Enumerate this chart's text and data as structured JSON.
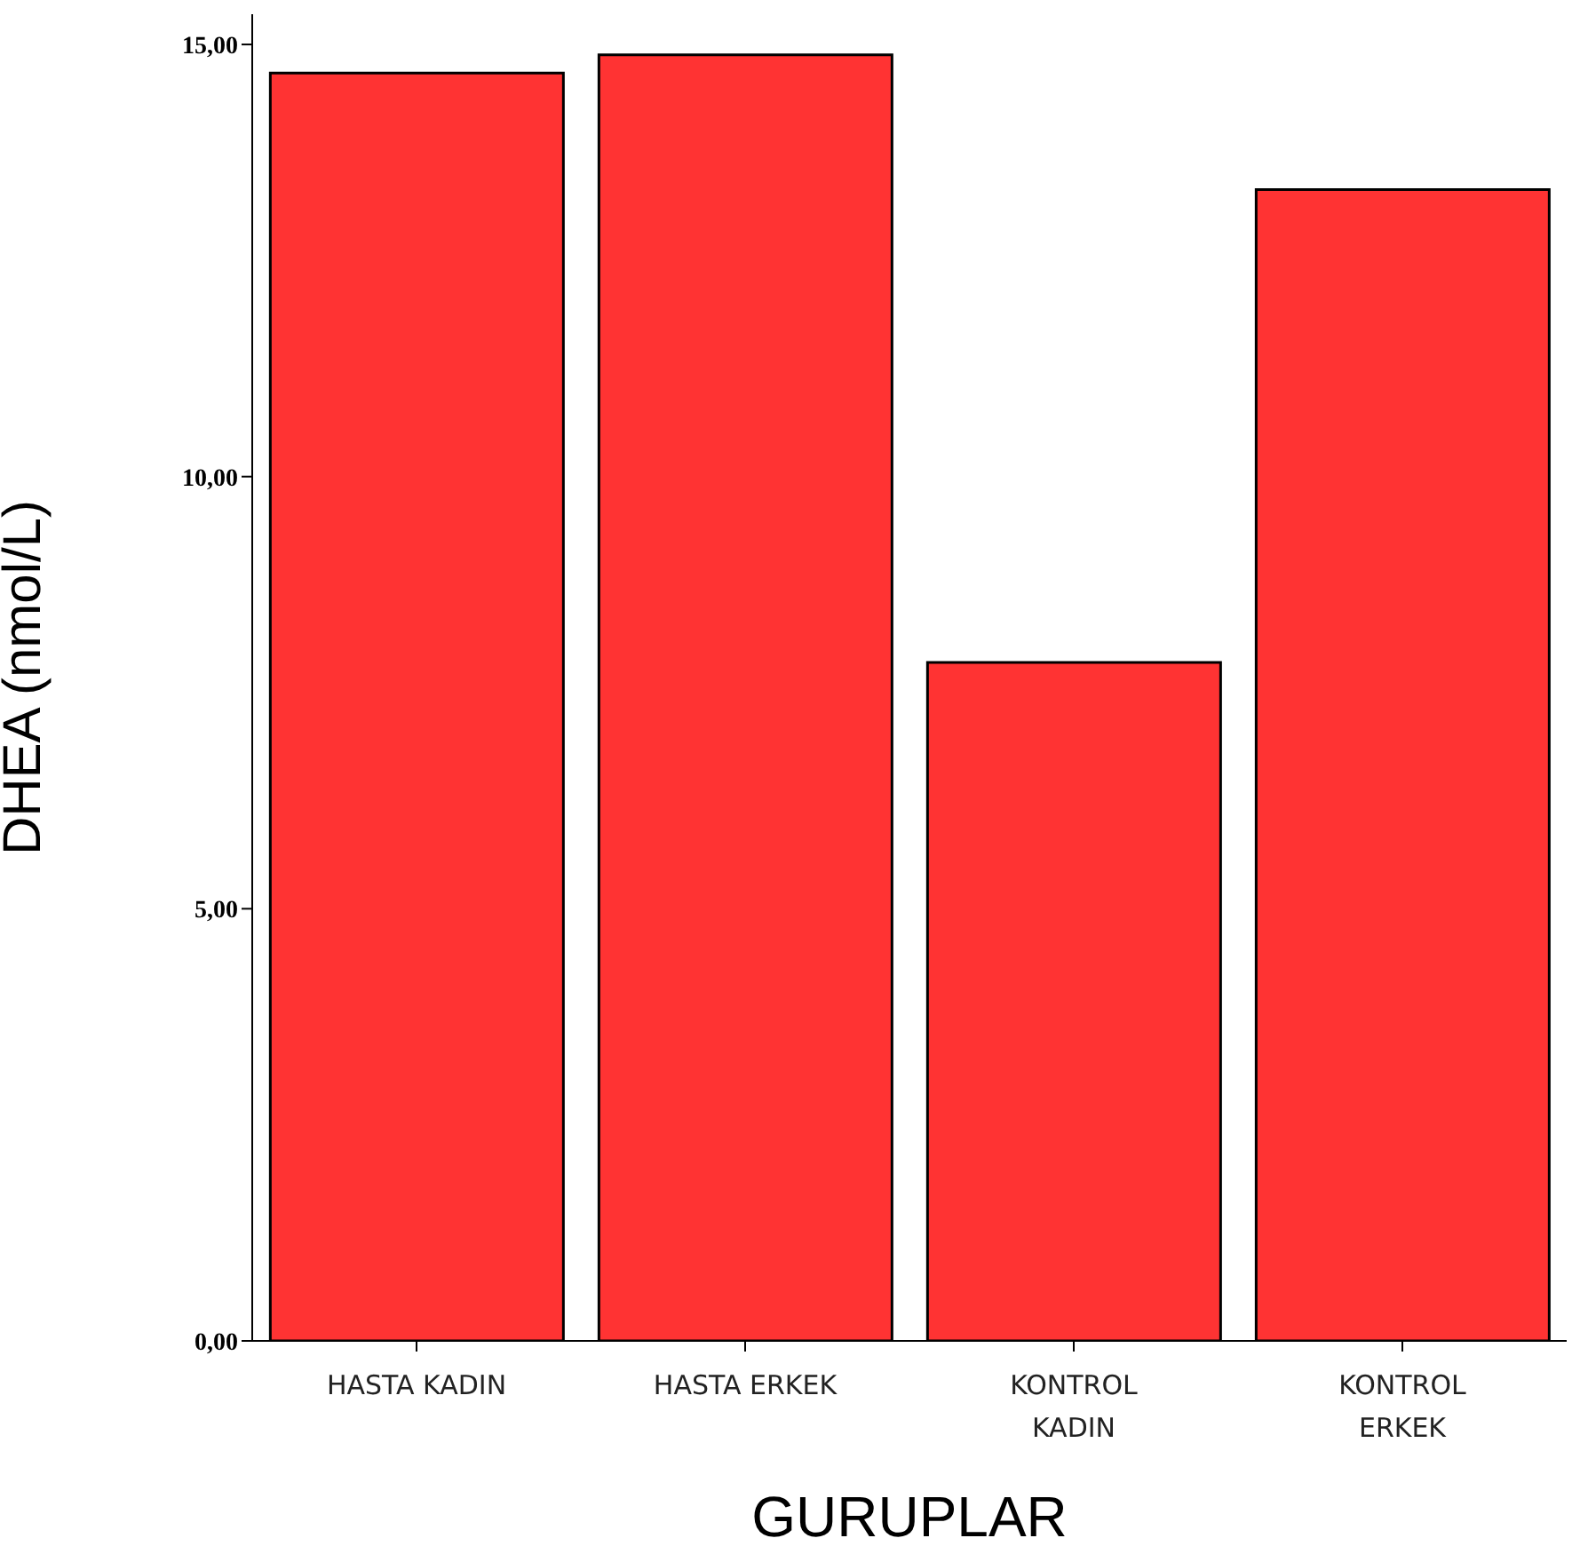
{
  "chart_data": {
    "type": "bar",
    "xlabel": "GURUPLAR",
    "ylabel": "DHEA   (nmol/L)",
    "categories": [
      "HASTA KADIN",
      "HASTA ERKEK",
      "KONTROL KADIN",
      "KONTROL ERKEK"
    ],
    "values": [
      14.67,
      14.88,
      7.85,
      13.32
    ],
    "color": "#ff3333",
    "ylim": [
      0,
      15.35
    ],
    "yticks": [
      {
        "value": 0,
        "label": "0,00"
      },
      {
        "value": 5,
        "label": "5,00"
      },
      {
        "value": 10,
        "label": "10,00"
      },
      {
        "value": 15,
        "label": "15,00"
      }
    ],
    "grid": false,
    "legend": false
  }
}
